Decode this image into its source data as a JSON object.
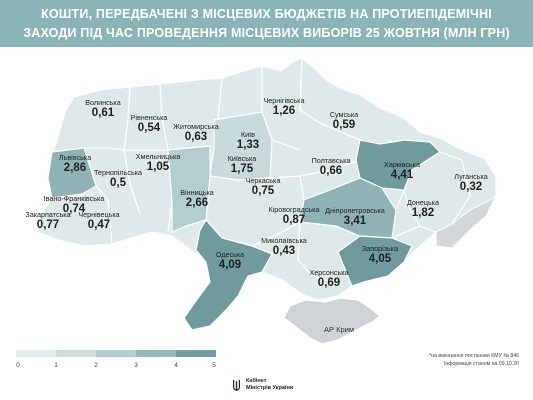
{
  "title": {
    "line1": "КОШТИ, ПЕРЕДБАЧЕНІ З МІСЦЕВИХ БЮДЖЕТІВ НА ПРОТИЕПІДЕМІЧНІ",
    "line2": "ЗАХОДИ ПІД ЧАС ПРОВЕДЕННЯ МІСЦЕВИХ ВИБОРІВ 25 ЖОВТНЯ (МЛН ГРН)"
  },
  "colors": {
    "header": "#8ab5b7",
    "region_fill": "#dfe9ea",
    "region_border": "#ffffff",
    "highlight": [
      "#dfe9ea",
      "#c8dadb",
      "#a9c5c7",
      "#8fb2b4",
      "#6f9b9d"
    ],
    "crimea_fill": "#cfd3d6",
    "occupied_fill": "#d4d8db"
  },
  "regions": {
    "volynska": {
      "name": "Волинська",
      "value": "0,61"
    },
    "rivnenska": {
      "name": "Рівненська",
      "value": "0,54"
    },
    "zhytomyrska": {
      "name": "Житомирська",
      "value": "0,63"
    },
    "chernihivska": {
      "name": "Чернігівська",
      "value": "1,26"
    },
    "sumska": {
      "name": "Сумська",
      "value": "0,59"
    },
    "kyiv": {
      "name": "Київ",
      "value": "1,33"
    },
    "kyivska": {
      "name": "Київська",
      "value": "1,75"
    },
    "lvivska": {
      "name": "Львівська",
      "value": "2,86"
    },
    "ternopilska": {
      "name": "Тернопільська",
      "value": "0,5"
    },
    "khmelnytska": {
      "name": "Хмельницька",
      "value": "1,05"
    },
    "poltavska": {
      "name": "Полтавська",
      "value": "0,66"
    },
    "kharkivska": {
      "name": "Харківська",
      "value": "4,41"
    },
    "luhanska": {
      "name": "Луганська",
      "value": "0,32"
    },
    "cherkaska": {
      "name": "Черкаська",
      "value": "0,75"
    },
    "vinnytska": {
      "name": "Вінницька",
      "value": "2,66"
    },
    "ivano_frankivska": {
      "name": "Івано-Франківська",
      "value": "0,74"
    },
    "zakarpatska": {
      "name": "Закарпатська",
      "value": "0,77"
    },
    "chernivetska": {
      "name": "Чернівецька",
      "value": "0,47"
    },
    "kirovohradska": {
      "name": "Кіровоградська",
      "value": "0,87"
    },
    "dnipropetrovska": {
      "name": "Дніпропетровська",
      "value": "3,41"
    },
    "donetska": {
      "name": "Донецька",
      "value": "1,82"
    },
    "odeska": {
      "name": "Одеська",
      "value": "4,09"
    },
    "mykolaivska": {
      "name": "Миколаївська",
      "value": "0,43"
    },
    "zaporizka": {
      "name": "Запорізька",
      "value": "4,05"
    },
    "khersonska": {
      "name": "Херсонська",
      "value": "0,69"
    }
  },
  "crimea": {
    "name": "АР Крим"
  },
  "legend": {
    "ticks": [
      "0",
      "1",
      "2",
      "3",
      "4",
      "5"
    ]
  },
  "footnote": {
    "line1": "*на виконання постанови КМУ № 846",
    "line2": "Інформація станом на 09.10.20"
  },
  "logo": {
    "line1": "Кабінет",
    "line2": "Міністрів України"
  }
}
